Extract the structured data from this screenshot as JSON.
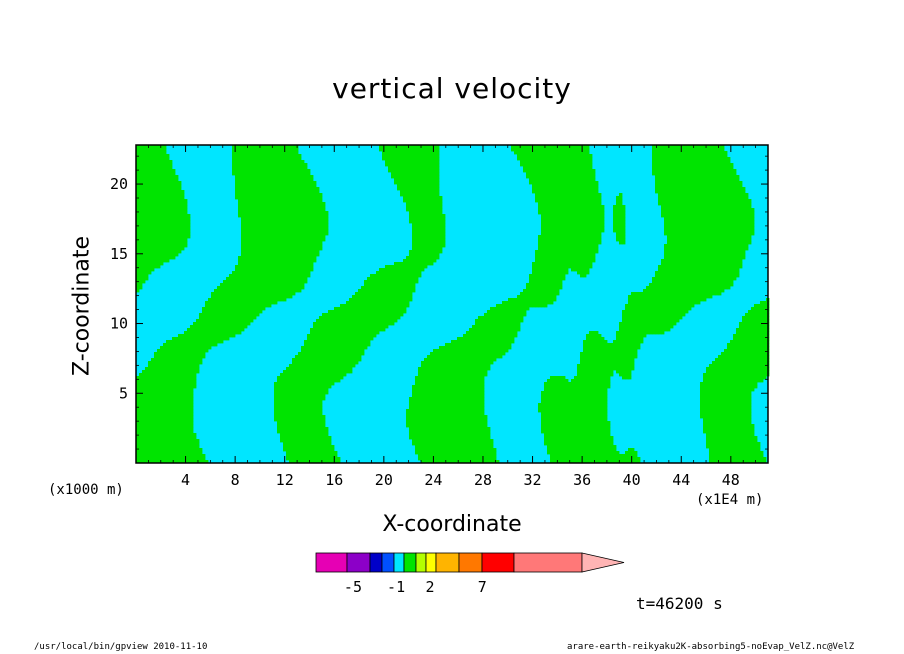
{
  "chart_data": {
    "type": "heatmap",
    "title": "vertical velocity",
    "xlabel": "X-coordinate",
    "ylabel": "Z-coordinate",
    "x_unit": "(x1000 m)",
    "x_unit2": "(x1E4 m)",
    "xlim": [
      0,
      51
    ],
    "ylim": [
      0,
      22.8
    ],
    "x_ticks": [
      4,
      8,
      12,
      16,
      20,
      24,
      28,
      32,
      36,
      40,
      44,
      48
    ],
    "y_ticks": [
      5,
      10,
      15,
      20
    ],
    "fill_colors": {
      "negative": "#00e6ff",
      "positive": "#00e400",
      "contour": "#3a3a3a"
    },
    "colorbar": {
      "colors": [
        "#e600b4",
        "#8c00c8",
        "#0000c8",
        "#0050ff",
        "#00e6ff",
        "#00e400",
        "#b4ff00",
        "#ffff00",
        "#ffb400",
        "#ff7800",
        "#ff0000",
        "#ff7878",
        "#ffb4b4"
      ],
      "labels": [
        {
          "text": "-5",
          "position": 0.12
        },
        {
          "text": "-1",
          "position": 0.26
        },
        {
          "text": "2",
          "position": 0.37
        },
        {
          "text": "7",
          "position": 0.54
        }
      ]
    },
    "time_label": "t=46200 s",
    "footer_left": "/usr/local/bin/gpview  2010-11-10",
    "footer_right": "arare-earth-reikyaku2K-absorbing5-noEvap_VelZ.nc@VelZ",
    "grid": false
  }
}
